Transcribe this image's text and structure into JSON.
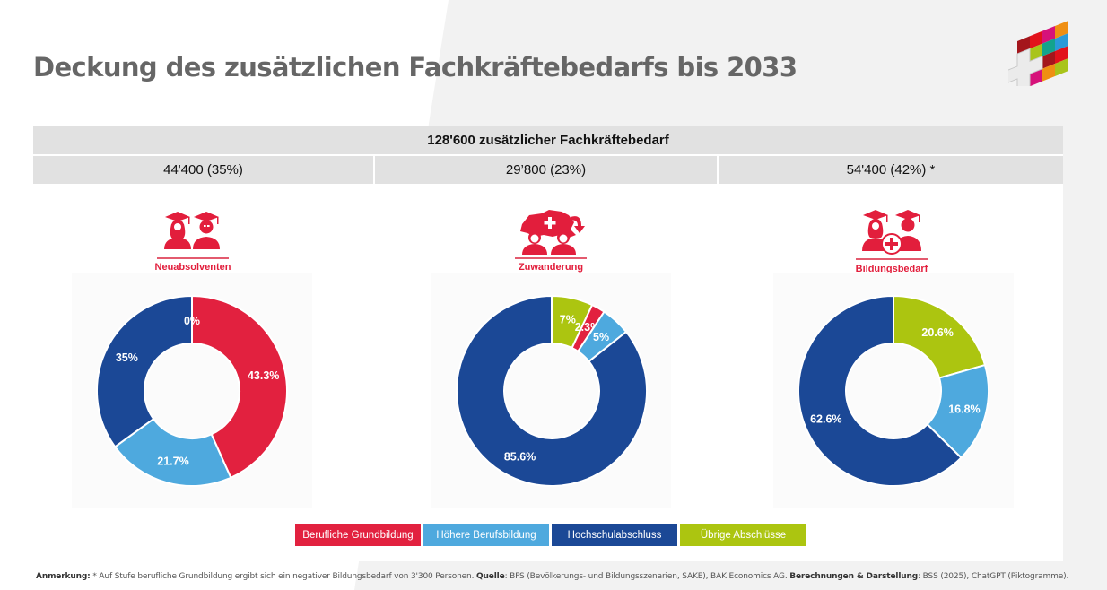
{
  "title": "Deckung des zusätzlichen Fachkräftebedarfs bis 2033",
  "header": {
    "total": "128'600 zusätzlicher Fachkräftebedarf",
    "columns": [
      "44'400 (35%)",
      "29’800 (23%)",
      "54'400 (42%) *"
    ]
  },
  "colors": {
    "berufliche_grundbildung": "#e2213f",
    "hoehere_berufsbildung": "#4ea9de",
    "hochschulabschluss": "#1b4896",
    "uebrige_abschluesse": "#acc510",
    "title_gray": "#666666",
    "header_gray": "#e1e1e1",
    "pictogram_red": "#e21e3c"
  },
  "pictograms": [
    {
      "label": "Neuabsolventen",
      "icon": "graduates-icon"
    },
    {
      "label": "Zuwanderung",
      "icon": "immigration-switzerland-icon"
    },
    {
      "label": "Bildungsbedarf",
      "icon": "graduates-plus-icon"
    }
  ],
  "legend": [
    {
      "label": "Berufliche Grundbildung",
      "color": "#e2213f"
    },
    {
      "label": "Höhere Berufsbildung",
      "color": "#4ea9de"
    },
    {
      "label": "Hochschulabschluss",
      "color": "#1b4896"
    },
    {
      "label": "Übrige Abschlüsse",
      "color": "#acc510"
    }
  ],
  "chart_data": [
    {
      "type": "pie",
      "variant": "donut",
      "title": "Neuabsolventen",
      "categories": [
        "Berufliche Grundbildung",
        "Höhere Berufsbildung",
        "Hochschulabschluss",
        "Übrige Abschlüsse"
      ],
      "order": [
        "Berufliche Grundbildung",
        "Höhere Berufsbildung",
        "Hochschulabschluss",
        "Übrige Abschlüsse"
      ],
      "values": [
        43.3,
        21.7,
        35,
        0
      ],
      "labels": [
        "43.3%",
        "21.7%",
        "35%",
        "0%"
      ]
    },
    {
      "type": "pie",
      "variant": "donut",
      "title": "Zuwanderung",
      "categories": [
        "Übrige Abschlüsse",
        "Berufliche Grundbildung",
        "Höhere Berufsbildung",
        "Hochschulabschluss"
      ],
      "values": [
        7,
        2.3,
        5,
        85.6
      ],
      "labels": [
        "7%",
        "2.3%",
        "5%",
        "85.6%"
      ]
    },
    {
      "type": "pie",
      "variant": "donut",
      "title": "Bildungsbedarf",
      "categories": [
        "Übrige Abschlüsse",
        "Höhere Berufsbildung",
        "Hochschulabschluss"
      ],
      "values": [
        20.6,
        16.8,
        62.6
      ],
      "labels": [
        "20.6%",
        "16.8%",
        "62.6%"
      ]
    }
  ],
  "footnote": {
    "anmerkung_label": "Anmerkung:",
    "anmerkung_text": " * Auf Stufe berufliche Grundbildung ergibt sich ein negativer Bildungsbedarf von 3'300 Personen. ",
    "quelle_label": "Quelle",
    "quelle_text": ": BFS (Bevölkerungs- und Bildungsszenarien, SAKE), BAK Economics AG. ",
    "berechnungen_label": "Berechnungen & Darstellung",
    "berechnungen_text": ": BSS (2025), ChatGPT (Piktogramme)."
  }
}
